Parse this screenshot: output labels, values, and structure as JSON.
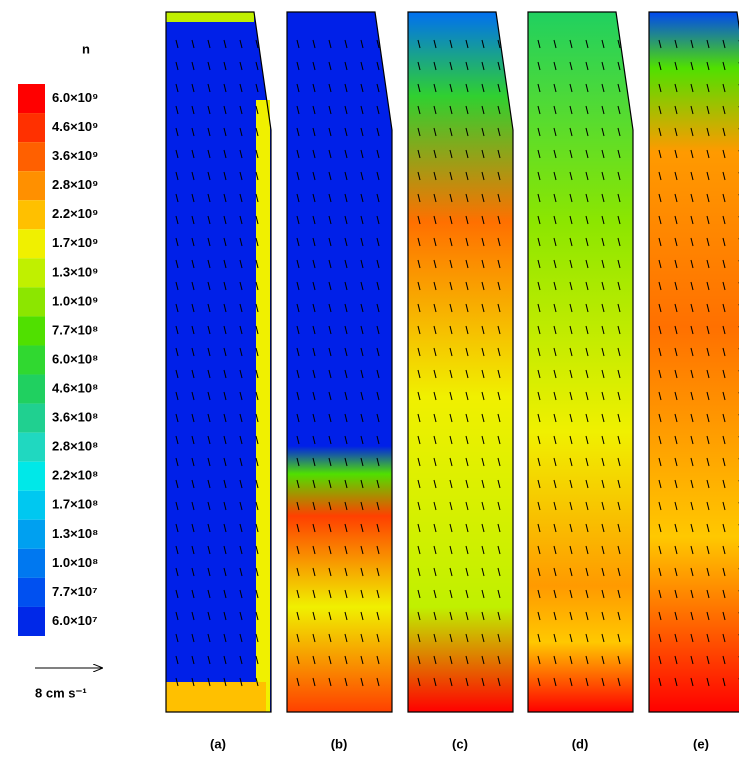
{
  "legend": {
    "title": "n",
    "labels": [
      "6.0×10⁹",
      "4.6×10⁹",
      "3.6×10⁹",
      "2.8×10⁹",
      "2.2×10⁹",
      "1.7×10⁹",
      "1.3×10⁹",
      "1.0×10⁹",
      "7.7×10⁸",
      "6.0×10⁸",
      "4.6×10⁸",
      "3.6×10⁸",
      "2.8×10⁸",
      "2.2×10⁸",
      "1.7×10⁸",
      "1.3×10⁸",
      "1.0×10⁸",
      "7.7×10⁷",
      "6.0×10⁷"
    ]
  },
  "scale_arrow": {
    "label": "8 cm s⁻¹"
  },
  "panels": [
    {
      "label": "(a)"
    },
    {
      "label": "(b)"
    },
    {
      "label": "(c)"
    },
    {
      "label": "(d)"
    },
    {
      "label": "(e)"
    }
  ]
}
